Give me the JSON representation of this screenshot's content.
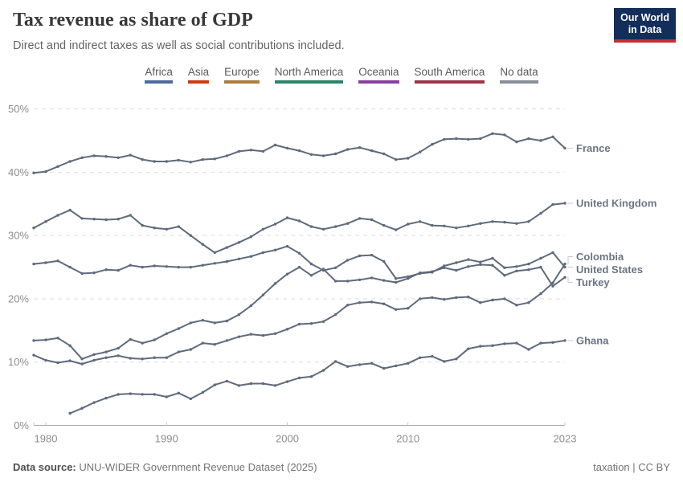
{
  "header": {
    "title": "Tax revenue as share of GDP",
    "subtitle": "Direct and indirect taxes as well as social contributions included.",
    "logo": {
      "line1": "Our World",
      "line2": "in Data",
      "bg_color": "#132e5a",
      "accent_color": "#c62f33"
    }
  },
  "legend": {
    "items": [
      {
        "label": "Africa",
        "color": "#4d6a9f"
      },
      {
        "label": "Asia",
        "color": "#cc3b0e"
      },
      {
        "label": "Europe",
        "color": "#ab7c42"
      },
      {
        "label": "North America",
        "color": "#2c8465"
      },
      {
        "label": "Oceania",
        "color": "#8740a0"
      },
      {
        "label": "South America",
        "color": "#9c3647"
      },
      {
        "label": "No data",
        "color": "#878e99"
      }
    ]
  },
  "chart_data": {
    "type": "line",
    "title": "Tax revenue as share of GDP",
    "unit": "%",
    "ylim": [
      0,
      50
    ],
    "grid": true,
    "line_color": "#5f6a7c",
    "colors": {
      "grid": "#dddddd",
      "axis": "#a8a8a8",
      "tick": "#c9c9c9",
      "tick_text": "#8d8d8d",
      "entity_label": "#6b7484",
      "connector": "#c5cad1"
    },
    "yticks": [
      {
        "value": 0,
        "label": "0%"
      },
      {
        "value": 10,
        "label": "10%"
      },
      {
        "value": 20,
        "label": "20%"
      },
      {
        "value": 30,
        "label": "30%"
      },
      {
        "value": 40,
        "label": "40%"
      },
      {
        "value": 50,
        "label": "50%"
      }
    ],
    "xticks": [
      1980,
      1990,
      2000,
      2010,
      2023
    ],
    "x": [
      1979,
      1980,
      1981,
      1982,
      1983,
      1984,
      1985,
      1986,
      1987,
      1988,
      1989,
      1990,
      1991,
      1992,
      1993,
      1994,
      1995,
      1996,
      1997,
      1998,
      1999,
      2000,
      2001,
      2002,
      2003,
      2004,
      2005,
      2006,
      2007,
      2008,
      2009,
      2010,
      2011,
      2012,
      2013,
      2014,
      2015,
      2016,
      2017,
      2018,
      2019,
      2020,
      2021,
      2022,
      2023
    ],
    "series": [
      {
        "name": "France",
        "values": [
          39.9,
          40.1,
          40.9,
          41.7,
          42.3,
          42.6,
          42.5,
          42.3,
          42.7,
          42.0,
          41.7,
          41.7,
          41.9,
          41.6,
          42.0,
          42.1,
          42.6,
          43.3,
          43.5,
          43.3,
          44.3,
          43.8,
          43.4,
          42.8,
          42.6,
          42.9,
          43.6,
          43.9,
          43.4,
          42.9,
          42.0,
          42.2,
          43.2,
          44.4,
          45.2,
          45.3,
          45.2,
          45.3,
          46.1,
          45.9,
          44.8,
          45.3,
          45.0,
          45.6,
          43.8
        ]
      },
      {
        "name": "United Kingdom",
        "values": [
          31.2,
          32.2,
          33.2,
          34.0,
          32.7,
          32.6,
          32.5,
          32.6,
          33.2,
          31.6,
          31.2,
          31.0,
          31.4,
          30.0,
          28.6,
          27.3,
          28.1,
          28.9,
          29.8,
          31.0,
          31.8,
          32.8,
          32.3,
          31.4,
          31.0,
          31.4,
          31.9,
          32.7,
          32.5,
          31.6,
          30.9,
          31.8,
          32.2,
          31.6,
          31.5,
          31.2,
          31.5,
          31.9,
          32.2,
          32.1,
          31.9,
          32.2,
          33.5,
          34.9,
          35.1
        ]
      },
      {
        "name": "Colombia",
        "values": [
          11.1,
          10.3,
          9.9,
          10.2,
          9.7,
          10.3,
          10.7,
          11.0,
          10.6,
          10.5,
          10.7,
          10.7,
          11.6,
          12.0,
          13.0,
          12.8,
          13.4,
          14.0,
          14.4,
          14.2,
          14.5,
          15.2,
          16.0,
          16.1,
          16.4,
          17.5,
          19.0,
          19.4,
          19.5,
          19.2,
          18.3,
          18.5,
          20.0,
          20.2,
          19.9,
          20.2,
          20.3,
          19.4,
          19.8,
          20.0,
          19.0,
          19.4,
          20.8,
          22.5,
          25.5
        ]
      },
      {
        "name": "United States",
        "values": [
          25.5,
          25.7,
          26.0,
          25.0,
          24.0,
          24.1,
          24.6,
          24.5,
          25.3,
          25.0,
          25.2,
          25.1,
          25.0,
          25.0,
          25.3,
          25.6,
          25.9,
          26.3,
          26.7,
          27.3,
          27.7,
          28.3,
          27.2,
          25.5,
          24.5,
          24.9,
          26.1,
          26.8,
          26.9,
          25.9,
          23.2,
          23.5,
          24.0,
          24.2,
          25.2,
          25.7,
          26.2,
          25.8,
          26.4,
          24.9,
          25.1,
          25.5,
          26.4,
          27.3,
          25.0
        ]
      },
      {
        "name": "Turkey",
        "values": [
          13.4,
          13.5,
          13.8,
          12.6,
          10.5,
          11.2,
          11.6,
          12.2,
          13.6,
          13.0,
          13.5,
          14.5,
          15.3,
          16.2,
          16.6,
          16.2,
          16.5,
          17.5,
          18.9,
          20.6,
          22.4,
          23.9,
          25.0,
          23.7,
          24.7,
          22.8,
          22.8,
          23.0,
          23.3,
          22.9,
          22.6,
          23.2,
          24.1,
          24.3,
          24.9,
          24.5,
          25.1,
          25.4,
          25.3,
          23.7,
          24.4,
          24.6,
          25.0,
          22.0,
          23.4
        ]
      },
      {
        "name": "Ghana",
        "values": [
          null,
          null,
          null,
          1.9,
          2.7,
          3.6,
          4.3,
          4.9,
          5.0,
          4.9,
          4.9,
          4.5,
          5.1,
          4.2,
          5.2,
          6.4,
          7.0,
          6.3,
          6.6,
          6.6,
          6.3,
          6.9,
          7.5,
          7.7,
          8.7,
          10.1,
          9.3,
          9.6,
          9.8,
          9.0,
          9.4,
          9.8,
          10.7,
          10.9,
          10.1,
          10.5,
          12.1,
          12.5,
          12.6,
          12.9,
          13.0,
          12.0,
          13.0,
          13.1,
          13.4
        ]
      }
    ]
  },
  "footer": {
    "source_label": "Data source:",
    "source_value": " UNU-WIDER Government Revenue Dataset (2025)",
    "license": "taxation | CC BY"
  }
}
